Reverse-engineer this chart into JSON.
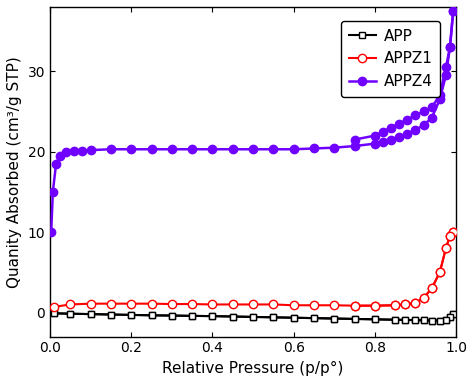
{
  "title": "",
  "xlabel": "Relative Pressure (p/p°)",
  "ylabel": "Quanity Absorbed (cm³/g STP)",
  "xlim": [
    0.0,
    1.0
  ],
  "ylim": [
    -3,
    38
  ],
  "yticks": [
    0,
    10,
    20,
    30
  ],
  "xticks": [
    0.0,
    0.2,
    0.4,
    0.6,
    0.8,
    1.0
  ],
  "background_color": "#ffffff",
  "series": [
    {
      "label": "APP",
      "color": "#000000",
      "marker": "s",
      "marker_facecolor": "white",
      "marker_size": 5,
      "linewidth": 1.5,
      "adsorption_x": [
        0.01,
        0.05,
        0.1,
        0.15,
        0.2,
        0.25,
        0.3,
        0.35,
        0.4,
        0.45,
        0.5,
        0.55,
        0.6,
        0.65,
        0.7,
        0.75,
        0.8,
        0.85,
        0.875,
        0.9,
        0.92,
        0.94,
        0.96,
        0.975,
        0.985,
        0.993
      ],
      "adsorption_y": [
        -0.1,
        -0.15,
        -0.2,
        -0.25,
        -0.3,
        -0.35,
        -0.38,
        -0.42,
        -0.45,
        -0.5,
        -0.55,
        -0.6,
        -0.65,
        -0.7,
        -0.75,
        -0.8,
        -0.85,
        -0.9,
        -0.92,
        -0.95,
        -0.97,
        -1.0,
        -1.0,
        -0.9,
        -0.5,
        -0.2
      ],
      "desorption_x": [
        0.993,
        0.985,
        0.975,
        0.96,
        0.94,
        0.92,
        0.9,
        0.875,
        0.85,
        0.8,
        0.75,
        0.7,
        0.65,
        0.6,
        0.55,
        0.5,
        0.45,
        0.4,
        0.35,
        0.3,
        0.25,
        0.2,
        0.15,
        0.1,
        0.05,
        0.01
      ],
      "desorption_y": [
        -0.2,
        -0.5,
        -0.9,
        -1.0,
        -1.0,
        -0.97,
        -0.95,
        -0.92,
        -0.9,
        -0.85,
        -0.8,
        -0.75,
        -0.7,
        -0.65,
        -0.6,
        -0.55,
        -0.5,
        -0.45,
        -0.42,
        -0.38,
        -0.35,
        -0.3,
        -0.25,
        -0.2,
        -0.15,
        -0.1
      ]
    },
    {
      "label": "APPZ1",
      "color": "#ff0000",
      "marker": "o",
      "marker_facecolor": "white",
      "marker_size": 6,
      "linewidth": 1.5,
      "adsorption_x": [
        0.01,
        0.05,
        0.1,
        0.15,
        0.2,
        0.25,
        0.3,
        0.35,
        0.4,
        0.45,
        0.5,
        0.55,
        0.6,
        0.65,
        0.7,
        0.75,
        0.8,
        0.85,
        0.875,
        0.9,
        0.92,
        0.94,
        0.96,
        0.975,
        0.985,
        0.993
      ],
      "adsorption_y": [
        0.7,
        1.0,
        1.1,
        1.1,
        1.1,
        1.1,
        1.05,
        1.05,
        1.0,
        1.0,
        1.0,
        1.0,
        0.9,
        0.9,
        0.9,
        0.85,
        0.85,
        0.9,
        1.0,
        1.2,
        1.8,
        3.0,
        5.0,
        8.0,
        9.5,
        10.0
      ],
      "desorption_x": [
        0.993,
        0.985,
        0.975,
        0.96,
        0.94,
        0.92,
        0.9,
        0.875,
        0.85,
        0.8,
        0.75
      ],
      "desorption_y": [
        10.0,
        9.5,
        8.0,
        5.0,
        3.0,
        1.8,
        1.2,
        1.0,
        0.9,
        0.85,
        0.85
      ]
    },
    {
      "label": "APPZ4",
      "color": "#7000ff",
      "marker": "o",
      "marker_facecolor": "#7000ff",
      "marker_size": 6,
      "linewidth": 1.8,
      "adsorption_x": [
        0.003,
        0.007,
        0.015,
        0.025,
        0.04,
        0.06,
        0.08,
        0.1,
        0.15,
        0.2,
        0.25,
        0.3,
        0.35,
        0.4,
        0.45,
        0.5,
        0.55,
        0.6,
        0.65,
        0.7,
        0.75,
        0.8,
        0.82,
        0.84,
        0.86,
        0.88,
        0.9,
        0.92,
        0.94,
        0.96,
        0.975,
        0.985,
        0.993
      ],
      "adsorption_y": [
        10.0,
        15.0,
        18.5,
        19.5,
        20.0,
        20.1,
        20.1,
        20.2,
        20.3,
        20.3,
        20.3,
        20.3,
        20.3,
        20.3,
        20.3,
        20.3,
        20.3,
        20.3,
        20.4,
        20.5,
        20.7,
        21.0,
        21.2,
        21.5,
        21.8,
        22.2,
        22.7,
        23.3,
        24.2,
        26.5,
        29.5,
        33.0,
        37.5
      ],
      "desorption_x": [
        0.993,
        0.985,
        0.975,
        0.96,
        0.94,
        0.92,
        0.9,
        0.88,
        0.86,
        0.84,
        0.82,
        0.8,
        0.75
      ],
      "desorption_y": [
        37.5,
        33.0,
        30.5,
        27.0,
        25.5,
        25.0,
        24.5,
        24.0,
        23.5,
        23.0,
        22.5,
        22.0,
        21.5
      ]
    }
  ]
}
